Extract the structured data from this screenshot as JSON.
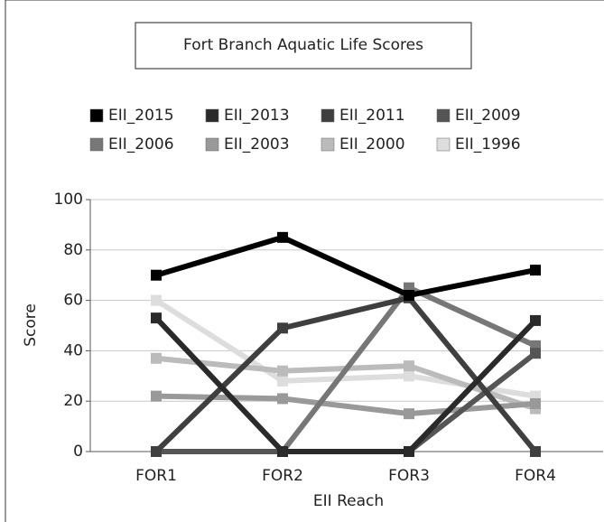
{
  "chart_data": {
    "type": "line",
    "title": "Fort Branch Aquatic Life Scores",
    "x_label": "EII Reach",
    "y_label": "Score",
    "categories": [
      "FOR1",
      "FOR2",
      "FOR3",
      "FOR4"
    ],
    "series": [
      {
        "name": "EII_2015",
        "color": "#000000",
        "values": [
          70,
          85,
          62,
          72
        ]
      },
      {
        "name": "EII_2013",
        "color": "#2a2a2a",
        "values": [
          53,
          0,
          0,
          52
        ]
      },
      {
        "name": "EII_2011",
        "color": "#3f3f3f",
        "values": [
          0,
          49,
          61,
          0
        ]
      },
      {
        "name": "EII_2009",
        "color": "#555555",
        "values": [
          0,
          0,
          0,
          39
        ]
      },
      {
        "name": "EII_2006",
        "color": "#777777",
        "values": [
          0,
          0,
          65,
          42
        ]
      },
      {
        "name": "EII_2003",
        "color": "#999999",
        "values": [
          22,
          21,
          15,
          19
        ]
      },
      {
        "name": "EII_2000",
        "color": "#bbbbbb",
        "values": [
          37,
          32,
          34,
          17
        ]
      },
      {
        "name": "EII_1996",
        "color": "#dddddd",
        "values": [
          60,
          28,
          30,
          22
        ]
      }
    ],
    "ylim": [
      0,
      100
    ],
    "yticks": [
      0,
      20,
      40,
      60,
      80,
      100
    ],
    "grid": true
  }
}
